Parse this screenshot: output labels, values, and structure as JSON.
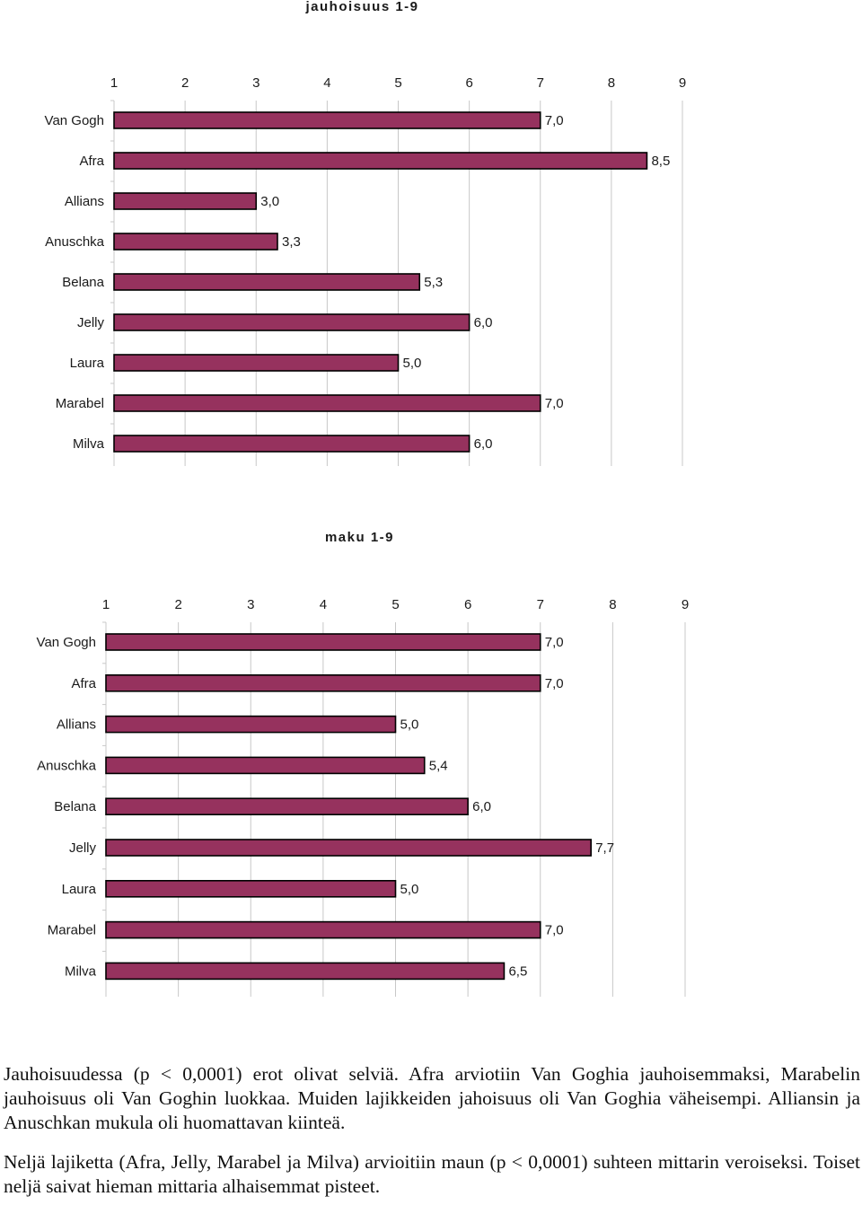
{
  "chart_data": [
    {
      "type": "bar",
      "orientation": "horizontal",
      "title": "jauhoisuus 1-9",
      "categories": [
        "Van Gogh",
        "Afra",
        "Allians",
        "Anuschka",
        "Belana",
        "Jelly",
        "Laura",
        "Marabel",
        "Milva"
      ],
      "values": [
        7.0,
        8.5,
        3.0,
        3.3,
        5.3,
        6.0,
        5.0,
        7.0,
        6.0
      ],
      "value_labels": [
        "7,0",
        "8,5",
        "3,0",
        "3,3",
        "5,3",
        "6,0",
        "5,0",
        "7,0",
        "6,0"
      ],
      "x_ticks": [
        "1",
        "2",
        "3",
        "4",
        "5",
        "6",
        "7",
        "8",
        "9"
      ],
      "xlim": [
        1,
        9
      ],
      "axis_position": "top",
      "grid": true,
      "bar_color": "#96325e"
    },
    {
      "type": "bar",
      "orientation": "horizontal",
      "title": "maku 1-9",
      "categories": [
        "Van Gogh",
        "Afra",
        "Allians",
        "Anuschka",
        "Belana",
        "Jelly",
        "Laura",
        "Marabel",
        "Milva"
      ],
      "values": [
        7.0,
        7.0,
        5.0,
        5.4,
        6.0,
        7.7,
        5.0,
        7.0,
        6.5
      ],
      "value_labels": [
        "7,0",
        "7,0",
        "5,0",
        "5,4",
        "6,0",
        "7,7",
        "5,0",
        "7,0",
        "6,5"
      ],
      "x_ticks": [
        "1",
        "2",
        "3",
        "4",
        "5",
        "6",
        "7",
        "8",
        "9"
      ],
      "xlim": [
        1,
        9
      ],
      "axis_position": "top",
      "grid": true,
      "bar_color": "#96325e"
    }
  ],
  "text": {
    "paragraph1": "Jauhoisuudessa (p < 0,0001) erot olivat selviä. Afra arviotiin Van Goghia jauhoisemmaksi, Marabelin jauhoisuus oli Van Goghin luokkaa. Muiden lajikkeiden jahoisuus oli Van Goghia väheisempi. Alliansin ja Anuschkan mukula oli huomattavan kiinteä.",
    "paragraph2": "Neljä lajiketta (Afra, Jelly, Marabel ja Milva) arvioitiin maun (p < 0,0001) suhteen mittarin veroiseksi. Toiset neljä saivat hieman mittaria alhaisemmat pisteet."
  }
}
